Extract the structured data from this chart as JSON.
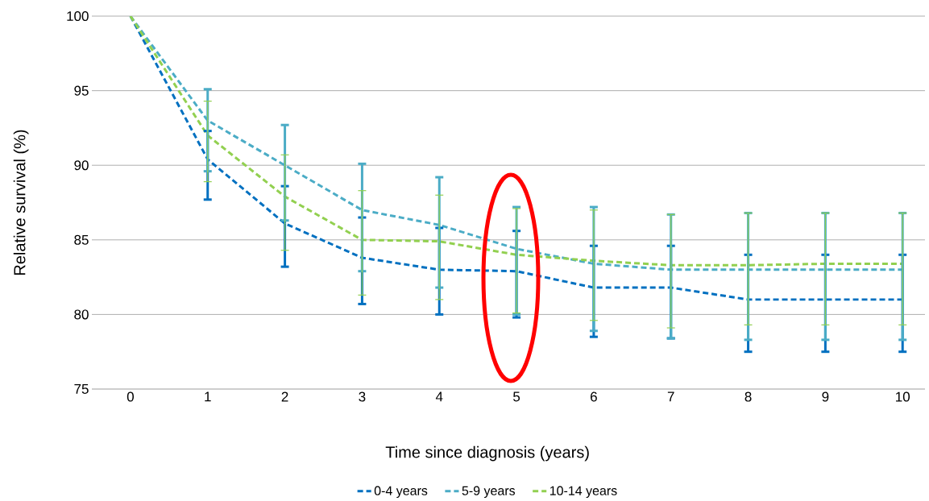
{
  "chart_data": {
    "type": "line",
    "xlabel": "Time since diagnosis (years)",
    "ylabel": "Relative survival (%)",
    "categories": [
      "0",
      "1",
      "2",
      "3",
      "4",
      "5",
      "6",
      "7",
      "8",
      "9",
      "10"
    ],
    "series": [
      {
        "name": "0-4 years",
        "color": "#0070c0",
        "values": [
          100,
          90.4,
          86.1,
          83.8,
          83.0,
          82.9,
          81.8,
          81.8,
          81.0,
          81.0,
          81.0
        ],
        "errors": [
          null,
          [
            87.7,
            92.3
          ],
          [
            83.2,
            88.6
          ],
          [
            80.7,
            86.5
          ],
          [
            80.0,
            85.8
          ],
          [
            79.8,
            85.6
          ],
          [
            78.5,
            84.6
          ],
          [
            78.4,
            84.6
          ],
          [
            77.5,
            84.0
          ],
          [
            77.5,
            84.0
          ],
          [
            77.5,
            84.0
          ]
        ]
      },
      {
        "name": "5-9 years",
        "color": "#4bacc6",
        "values": [
          100,
          93.0,
          90.0,
          87.0,
          86.0,
          84.4,
          83.4,
          83.0,
          83.0,
          83.0,
          83.0
        ],
        "errors": [
          null,
          [
            89.6,
            95.1
          ],
          [
            86.3,
            92.7
          ],
          [
            82.9,
            90.1
          ],
          [
            81.8,
            89.2
          ],
          [
            80.0,
            87.2
          ],
          [
            78.9,
            87.2
          ],
          [
            78.4,
            86.7
          ],
          [
            78.3,
            86.8
          ],
          [
            78.3,
            86.8
          ],
          [
            78.3,
            86.8
          ]
        ]
      },
      {
        "name": "10-14 years",
        "color": "#92d050",
        "values": [
          100,
          92.0,
          87.9,
          85.0,
          84.9,
          84.0,
          83.6,
          83.3,
          83.3,
          83.4,
          83.4
        ],
        "errors": [
          null,
          [
            88.9,
            94.3
          ],
          [
            84.3,
            90.7
          ],
          [
            81.3,
            88.3
          ],
          [
            81.0,
            88.0
          ],
          [
            80.1,
            87.1
          ],
          [
            79.6,
            87.0
          ],
          [
            79.1,
            86.7
          ],
          [
            79.3,
            86.8
          ],
          [
            79.3,
            86.8
          ],
          [
            79.3,
            86.8
          ]
        ]
      }
    ],
    "ylim": [
      75,
      100
    ],
    "yticks": [
      75,
      80,
      85,
      90,
      95,
      100
    ],
    "grid": "y",
    "legend": "bottom",
    "marker": "none",
    "line_style": "dashed"
  }
}
